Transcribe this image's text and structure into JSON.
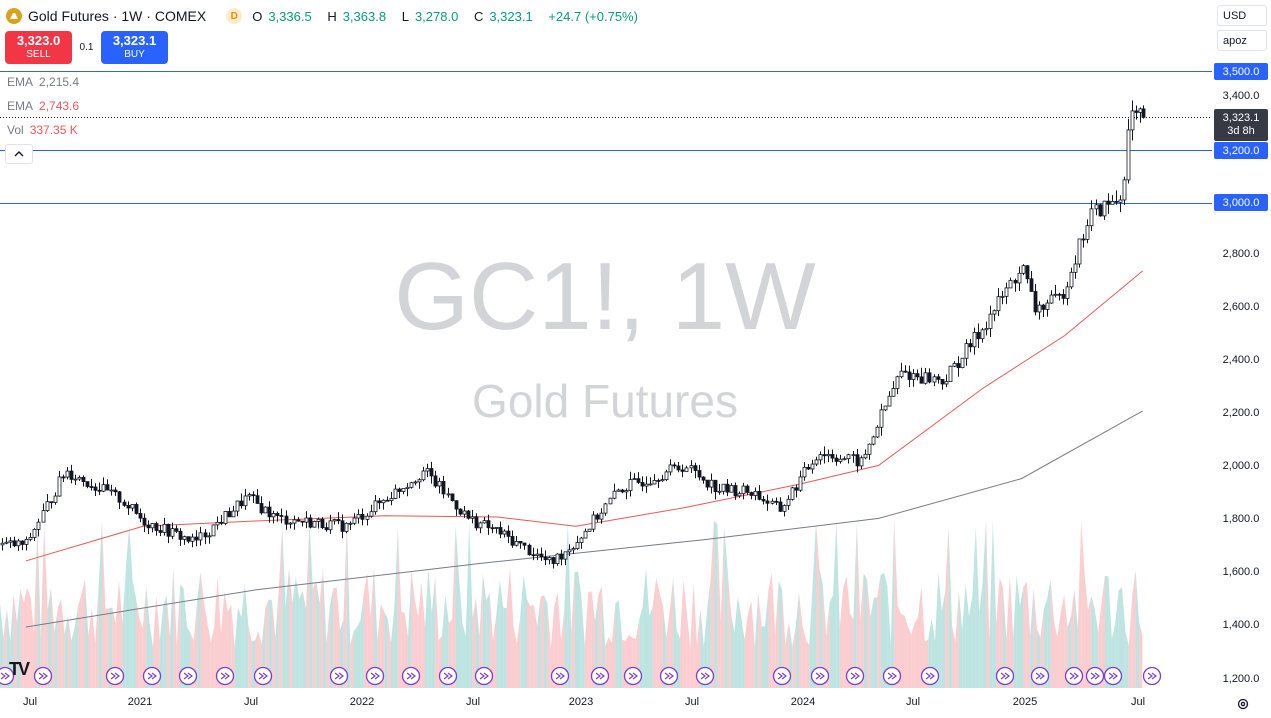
{
  "header": {
    "symbol_name": "Gold Futures",
    "interval": "1W",
    "exchange": "COMEX",
    "badge": "D",
    "ohlc": [
      {
        "key": "O",
        "value": "3,336.5"
      },
      {
        "key": "H",
        "value": "3,363.8"
      },
      {
        "key": "L",
        "value": "3,278.0"
      },
      {
        "key": "C",
        "value": "3,323.1"
      }
    ],
    "change": "+24.7 (+0.75%)"
  },
  "trade": {
    "sell_price": "3,323.0",
    "sell_label": "SELL",
    "spread": "0.1",
    "buy_price": "3,323.1",
    "buy_label": "BUY"
  },
  "indicators": [
    {
      "name": "EMA",
      "value": "2,215.4",
      "color": "#787b86"
    },
    {
      "name": "EMA",
      "value": "2,743.6",
      "color": "#e8575a"
    },
    {
      "name": "Vol",
      "value": "337.35 K",
      "color": "#e8575a"
    }
  ],
  "watermark": {
    "line1": "GC1!, 1W",
    "line2": "Gold Futures"
  },
  "right_panel": {
    "currency": "USD",
    "scale_mode": "apoz"
  },
  "y_axis_labels": [
    "3,400.0",
    "2,800.0",
    "2,600.0",
    "2,400.0",
    "2,200.0",
    "2,000.0",
    "1,800.0",
    "1,600.0",
    "1,400.0",
    "1,200.0"
  ],
  "horizontal_levels": [
    "3,500.0",
    "3,200.0",
    "3,000.0"
  ],
  "last_price": {
    "value": "3,323.1",
    "countdown": "3d 8h"
  },
  "x_axis_labels": [
    "Jul",
    "2021",
    "Jul",
    "2022",
    "Jul",
    "2023",
    "Jul",
    "2024",
    "Jul",
    "2025",
    "Jul"
  ],
  "colors": {
    "up": "#089981",
    "down": "#f23645",
    "level_line": "#2962ff",
    "ema_fast": "#e8575a",
    "ema_slow": "#787b86",
    "vol_up": "#b2dfdb",
    "vol_down": "#f9c4c8",
    "event_marker": "#7b3fc6"
  },
  "chart_data": {
    "type": "candlestick",
    "interval": "1W",
    "y_range": [
      1200,
      3600
    ],
    "levels": [
      3500,
      3200,
      3000
    ],
    "last_price": 3323.1,
    "price_path": [
      [
        "2020-06-01",
        1710
      ],
      [
        "2020-08-03",
        1990
      ],
      [
        "2020-11-02",
        1880
      ],
      [
        "2020-12-07",
        1800
      ],
      [
        "2021-03-01",
        1720
      ],
      [
        "2021-05-24",
        1890
      ],
      [
        "2021-07-12",
        1810
      ],
      [
        "2021-11-01",
        1780
      ],
      [
        "2022-03-07",
        1990
      ],
      [
        "2022-05-16",
        1810
      ],
      [
        "2022-07-04",
        1760
      ],
      [
        "2022-09-26",
        1640
      ],
      [
        "2022-11-07",
        1720
      ],
      [
        "2023-01-16",
        1920
      ],
      [
        "2023-05-01",
        2010
      ],
      [
        "2023-06-26",
        1920
      ],
      [
        "2023-08-21",
        1910
      ],
      [
        "2023-10-02",
        1840
      ],
      [
        "2023-12-04",
        2060
      ],
      [
        "2024-02-12",
        2020
      ],
      [
        "2024-03-11",
        2180
      ],
      [
        "2024-04-15",
        2360
      ],
      [
        "2024-06-24",
        2330
      ],
      [
        "2024-08-26",
        2530
      ],
      [
        "2024-10-28",
        2760
      ],
      [
        "2024-11-18",
        2600
      ],
      [
        "2024-12-30",
        2640
      ],
      [
        "2025-02-17",
        2960
      ],
      [
        "2025-04-07",
        3020
      ],
      [
        "2025-04-21",
        3330
      ],
      [
        "2025-05-12",
        3323
      ]
    ],
    "ema_fast_path": [
      [
        "2020-06-01",
        1650
      ],
      [
        "2020-12-07",
        1780
      ],
      [
        "2021-06-07",
        1800
      ],
      [
        "2022-01-03",
        1820
      ],
      [
        "2022-07-04",
        1815
      ],
      [
        "2022-11-07",
        1780
      ],
      [
        "2023-05-01",
        1850
      ],
      [
        "2023-11-06",
        1940
      ],
      [
        "2024-03-11",
        2010
      ],
      [
        "2024-08-26",
        2300
      ],
      [
        "2025-01-06",
        2500
      ],
      [
        "2025-05-12",
        2743.6
      ]
    ],
    "ema_slow_path": [
      [
        "2020-06-01",
        1400
      ],
      [
        "2021-06-07",
        1540
      ],
      [
        "2022-06-06",
        1640
      ],
      [
        "2023-06-05",
        1730
      ],
      [
        "2024-03-11",
        1810
      ],
      [
        "2024-10-28",
        1960
      ],
      [
        "2025-05-12",
        2215.4
      ]
    ],
    "volume_last": "337.35 K",
    "ema_fast_last": 2743.6,
    "ema_slow_last": 2215.4
  }
}
